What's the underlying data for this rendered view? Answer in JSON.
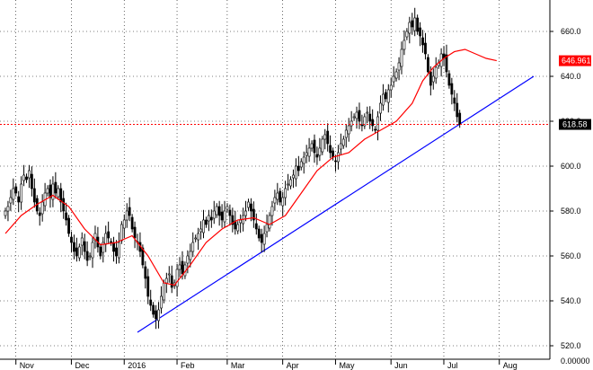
{
  "chart_data": {
    "type": "candlestick",
    "title": "",
    "xlabel": "",
    "ylabel": "",
    "ylim": [
      514,
      674
    ],
    "y_ticks": [
      {
        "value": 520,
        "label": "520.0"
      },
      {
        "value": 540,
        "label": "540.0"
      },
      {
        "value": 560,
        "label": "560.0"
      },
      {
        "value": 580,
        "label": "580.0"
      },
      {
        "value": 600,
        "label": "600.0"
      },
      {
        "value": 620,
        "label": "620.0"
      },
      {
        "value": 640,
        "label": "640.0"
      },
      {
        "value": 660,
        "label": "660.0"
      }
    ],
    "x_ticks": [
      {
        "label": "Nov",
        "index": 5
      },
      {
        "label": "Dec",
        "index": 26
      },
      {
        "label": "2016",
        "index": 46
      },
      {
        "label": "Feb",
        "index": 66
      },
      {
        "label": "Mar",
        "index": 85
      },
      {
        "label": "Apr",
        "index": 106
      },
      {
        "label": "May",
        "index": 126
      },
      {
        "label": "Jun",
        "index": 147
      },
      {
        "label": "Jul",
        "index": 167
      },
      {
        "label": "Aug",
        "index": 188
      }
    ],
    "x_axis_corner_label": "0.00000",
    "grid": true,
    "grid_style": "dotted",
    "axis_color": "#000000",
    "candle_up_color": "#ffffff",
    "candle_down_color": "#000000",
    "close": [
      580,
      582,
      586,
      590,
      588,
      584,
      592,
      596,
      594,
      598,
      590,
      584,
      580,
      578,
      584,
      588,
      590,
      586,
      592,
      588,
      590,
      584,
      580,
      576,
      570,
      566,
      562,
      560,
      564,
      568,
      562,
      558,
      560,
      566,
      570,
      564,
      560,
      566,
      570,
      568,
      566,
      562,
      560,
      566,
      574,
      576,
      580,
      578,
      572,
      568,
      566,
      562,
      556,
      550,
      542,
      538,
      534,
      532,
      536,
      542,
      548,
      550,
      552,
      546,
      548,
      554,
      556,
      552,
      556,
      560,
      562,
      566,
      568,
      570,
      572,
      576,
      574,
      578,
      576,
      580,
      582,
      578,
      576,
      580,
      582,
      578,
      574,
      572,
      574,
      576,
      578,
      580,
      584,
      580,
      576,
      572,
      568,
      566,
      570,
      574,
      578,
      582,
      586,
      588,
      584,
      586,
      590,
      592,
      594,
      596,
      600,
      598,
      602,
      604,
      606,
      608,
      610,
      606,
      604,
      608,
      612,
      614,
      610,
      606,
      604,
      602,
      606,
      610,
      612,
      616,
      618,
      620,
      622,
      624,
      620,
      618,
      622,
      624,
      620,
      618,
      616,
      622,
      628,
      632,
      630,
      634,
      636,
      640,
      642,
      646,
      652,
      656,
      660,
      664,
      662,
      666,
      660,
      658,
      654,
      650,
      642,
      636,
      640,
      644,
      646,
      650,
      648,
      642,
      636,
      632,
      628,
      622,
      618.58
    ],
    "sma": [
      {
        "index": 0,
        "value": 570
      },
      {
        "index": 6,
        "value": 578
      },
      {
        "index": 12,
        "value": 583
      },
      {
        "index": 18,
        "value": 587
      },
      {
        "index": 24,
        "value": 582
      },
      {
        "index": 30,
        "value": 572
      },
      {
        "index": 36,
        "value": 565
      },
      {
        "index": 42,
        "value": 566
      },
      {
        "index": 48,
        "value": 569
      },
      {
        "index": 54,
        "value": 560
      },
      {
        "index": 60,
        "value": 548
      },
      {
        "index": 64,
        "value": 547
      },
      {
        "index": 70,
        "value": 556
      },
      {
        "index": 76,
        "value": 566
      },
      {
        "index": 82,
        "value": 572
      },
      {
        "index": 88,
        "value": 576
      },
      {
        "index": 94,
        "value": 577
      },
      {
        "index": 100,
        "value": 574
      },
      {
        "index": 106,
        "value": 578
      },
      {
        "index": 112,
        "value": 588
      },
      {
        "index": 118,
        "value": 598
      },
      {
        "index": 124,
        "value": 604
      },
      {
        "index": 130,
        "value": 606
      },
      {
        "index": 136,
        "value": 612
      },
      {
        "index": 142,
        "value": 616
      },
      {
        "index": 148,
        "value": 620
      },
      {
        "index": 154,
        "value": 628
      },
      {
        "index": 158,
        "value": 638
      },
      {
        "index": 162,
        "value": 644
      },
      {
        "index": 166,
        "value": 648
      },
      {
        "index": 170,
        "value": 651
      },
      {
        "index": 174,
        "value": 652
      },
      {
        "index": 178,
        "value": 650
      },
      {
        "index": 182,
        "value": 648
      },
      {
        "index": 186,
        "value": 646.96
      }
    ],
    "trendline": {
      "from": {
        "index": 50,
        "value": 526
      },
      "to": {
        "index": 200,
        "value": 640
      }
    },
    "sma_color": "#ff0000",
    "trendline_color": "#0000ff",
    "sma_last_label": "646.961",
    "last_price_label": "618.58",
    "last_price_value": 618.58,
    "last_price_line_color": "#ff0000",
    "sma_label_bg": "#ff0000",
    "last_price_label_bg": "#000000",
    "label_text_color": "#ffffff"
  }
}
